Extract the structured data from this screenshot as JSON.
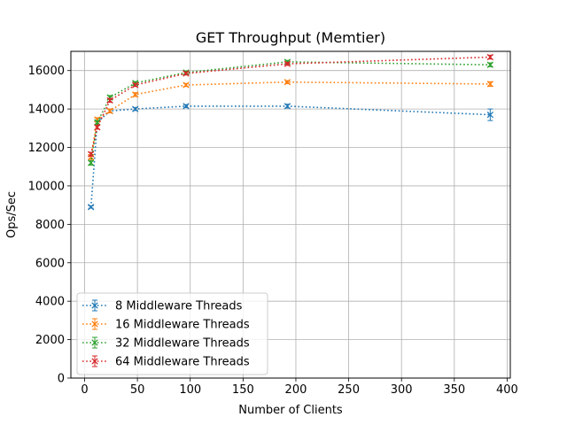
{
  "chart_data": {
    "type": "line",
    "title": "GET Throughput (Memtier)",
    "xlabel": "Number of Clients",
    "ylabel": "Ops/Sec",
    "xlim": [
      -13,
      403
    ],
    "ylim": [
      0,
      17000
    ],
    "xticks": [
      0,
      50,
      100,
      150,
      200,
      250,
      300,
      350,
      400
    ],
    "yticks": [
      0,
      2000,
      4000,
      6000,
      8000,
      10000,
      12000,
      14000,
      16000
    ],
    "grid": true,
    "legend_position": "lower-left",
    "x": [
      6,
      12,
      24,
      48,
      96,
      192,
      384
    ],
    "series": [
      {
        "name": "8 Middleware Threads",
        "color": "#1f77b4",
        "values": [
          8900,
          13300,
          13900,
          14000,
          14150,
          14150,
          13700
        ],
        "errors": [
          60,
          100,
          100,
          80,
          80,
          100,
          300
        ]
      },
      {
        "name": "16 Middleware Threads",
        "color": "#ff7f0e",
        "values": [
          11500,
          13450,
          13900,
          14750,
          15250,
          15400,
          15300
        ],
        "errors": [
          120,
          100,
          100,
          100,
          80,
          80,
          120
        ]
      },
      {
        "name": "32 Middleware Threads",
        "color": "#2ca02c",
        "values": [
          11200,
          13300,
          14600,
          15350,
          15900,
          16450,
          16300
        ],
        "errors": [
          120,
          100,
          100,
          80,
          80,
          80,
          100
        ]
      },
      {
        "name": "64 Middleware Threads",
        "color": "#d62728",
        "values": [
          11650,
          13050,
          14450,
          15250,
          15850,
          16350,
          16700
        ],
        "errors": [
          100,
          100,
          100,
          80,
          80,
          80,
          100
        ]
      }
    ]
  }
}
